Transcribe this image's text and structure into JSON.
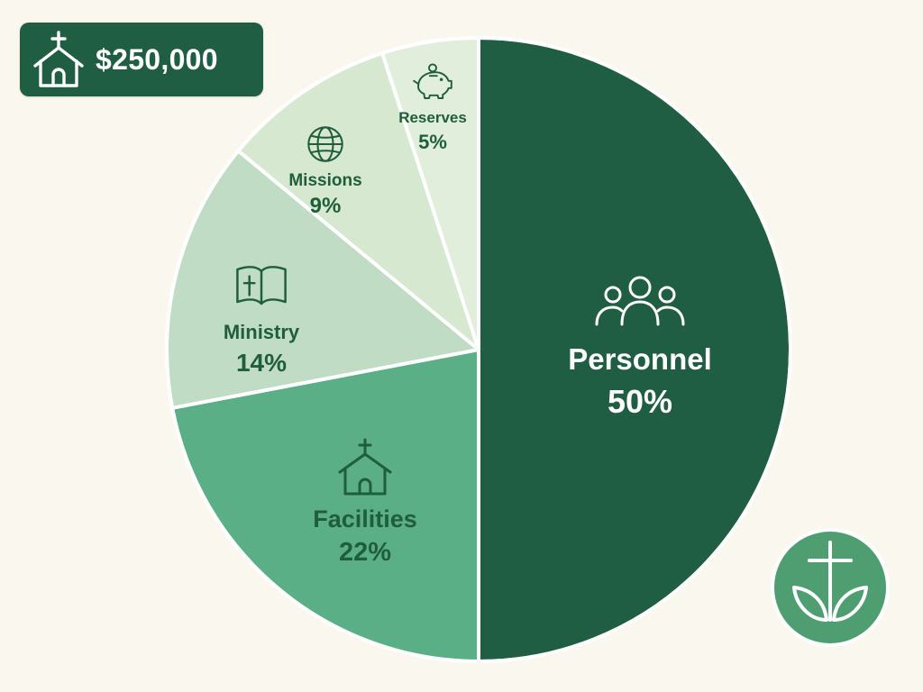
{
  "budget": {
    "icon": "church-icon",
    "amount": "$250,000"
  },
  "colors": {
    "background": "#FAF7EF",
    "badge": "#1F5E43",
    "text_dark": "#1F5E3A",
    "slice_border": "#FFFFFF"
  },
  "chart_data": {
    "type": "pie",
    "title": "",
    "start_angle_deg": 0,
    "direction": "clockwise",
    "slices": [
      {
        "label": "Personnel",
        "value": 50,
        "value_label": "50%",
        "icon": "people-icon",
        "color": "#1F5E43",
        "text_color": "#FFFFFF"
      },
      {
        "label": "Facilities",
        "value": 22,
        "value_label": "22%",
        "icon": "church-icon",
        "color": "#5AAF86",
        "text_color": "#1F5E3A"
      },
      {
        "label": "Ministry",
        "value": 14,
        "value_label": "14%",
        "icon": "bible-icon",
        "color": "#C0DCC4",
        "text_color": "#1F5E3A"
      },
      {
        "label": "Missions",
        "value": 9,
        "value_label": "9%",
        "icon": "globe-icon",
        "color": "#D6E8D0",
        "text_color": "#1F5E3A"
      },
      {
        "label": "Reserves",
        "value": 5,
        "value_label": "5%",
        "icon": "piggy-bank-icon",
        "color": "#E1EEDC",
        "text_color": "#1F5E3A"
      }
    ]
  },
  "logo": {
    "icon": "cross-leaves-logo-icon",
    "color": "#4E9E72"
  }
}
